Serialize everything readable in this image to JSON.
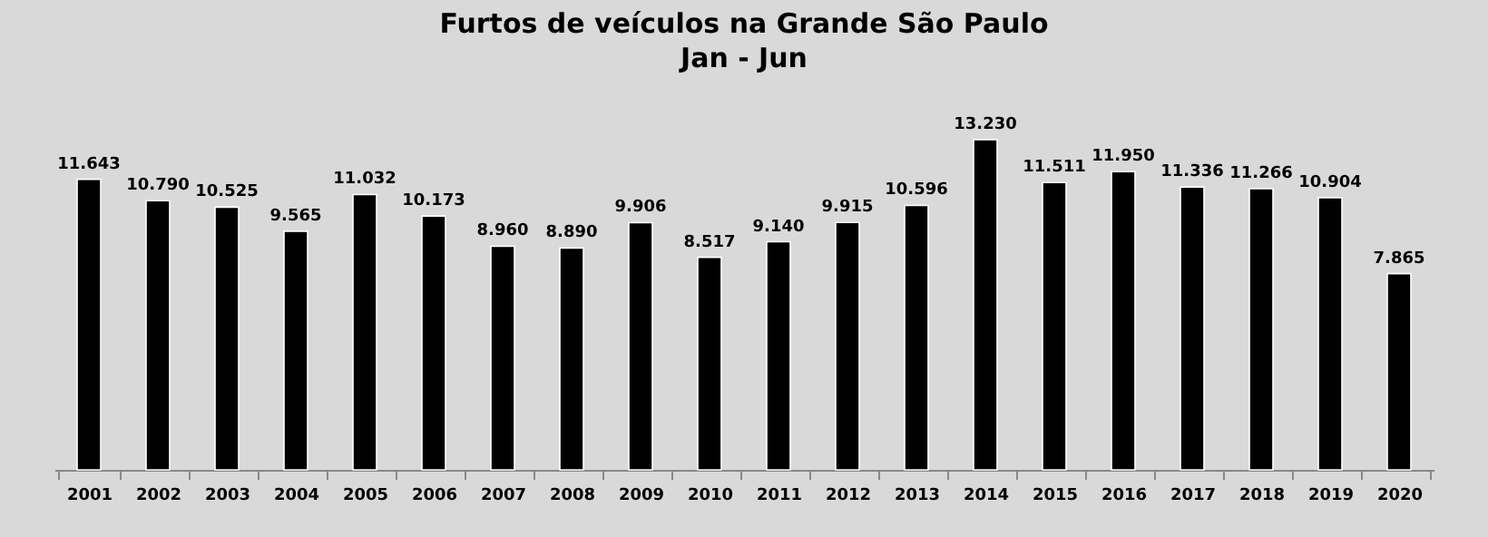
{
  "chart_data": {
    "type": "bar",
    "title": "Furtos de veículos na Grande São Paulo",
    "subtitle": "Jan - Jun",
    "categories": [
      "2001",
      "2002",
      "2003",
      "2004",
      "2005",
      "2006",
      "2007",
      "2008",
      "2009",
      "2010",
      "2011",
      "2012",
      "2013",
      "2014",
      "2015",
      "2016",
      "2017",
      "2018",
      "2019",
      "2020"
    ],
    "values": [
      11643,
      10790,
      10525,
      9565,
      11032,
      10173,
      8960,
      8890,
      9906,
      8517,
      9140,
      9915,
      10596,
      13230,
      11511,
      11950,
      11336,
      11266,
      10904,
      7865
    ],
    "value_labels": [
      "11.643",
      "10.790",
      "10.525",
      "9.565",
      "11.032",
      "10.173",
      "8.960",
      "8.890",
      "9.906",
      "8.517",
      "9.140",
      "9.915",
      "10.596",
      "13.230",
      "11.511",
      "11.950",
      "11.336",
      "11.266",
      "10.904",
      "7.865"
    ],
    "color": "#000000"
  }
}
